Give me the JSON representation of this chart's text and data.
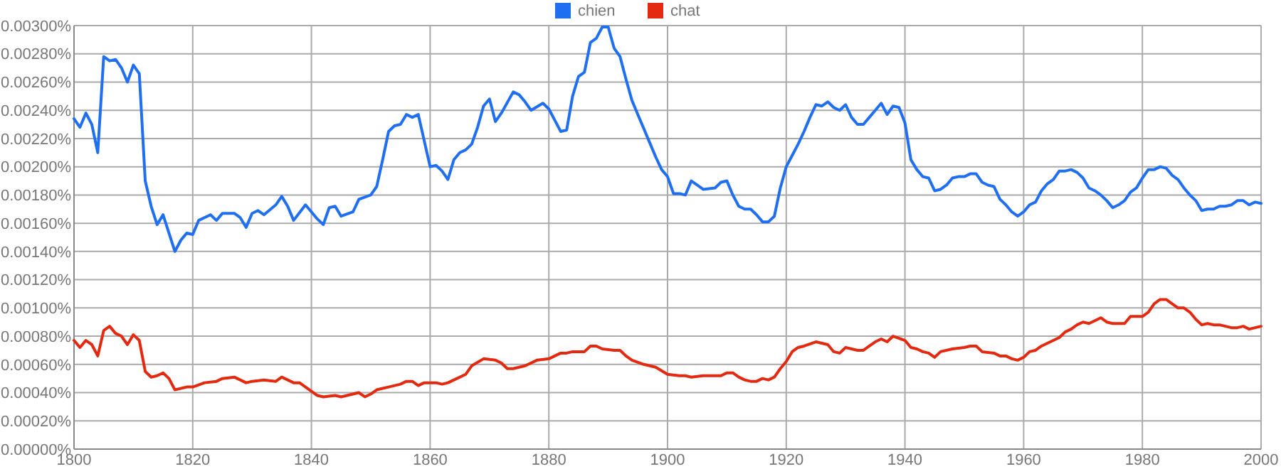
{
  "chart_data": {
    "type": "line",
    "legend": "top",
    "grid": true,
    "marker": "none",
    "line_style": "solid",
    "xlim": [
      1800,
      2000
    ],
    "xticks": [
      1800,
      1820,
      1840,
      1860,
      1880,
      1900,
      1920,
      1940,
      1960,
      1980,
      2000
    ],
    "ylim": [
      0,
      0.003
    ],
    "yticks": [
      {
        "value": 0,
        "label": "0.00000%"
      },
      {
        "value": 0.0002,
        "label": "0.00020%"
      },
      {
        "value": 0.0004,
        "label": "0.00040%"
      },
      {
        "value": 0.0006,
        "label": "0.00060%"
      },
      {
        "value": 0.0008,
        "label": "0.00080%"
      },
      {
        "value": 0.001,
        "label": "0.00100%"
      },
      {
        "value": 0.0012,
        "label": "0.00120%"
      },
      {
        "value": 0.0014,
        "label": "0.00140%"
      },
      {
        "value": 0.0016,
        "label": "0.00160%"
      },
      {
        "value": 0.0018,
        "label": "0.00180%"
      },
      {
        "value": 0.002,
        "label": "0.00200%"
      },
      {
        "value": 0.0022,
        "label": "0.00220%"
      },
      {
        "value": 0.0024,
        "label": "0.00240%"
      },
      {
        "value": 0.0026,
        "label": "0.00260%"
      },
      {
        "value": 0.0028,
        "label": "0.00280%"
      },
      {
        "value": 0.003,
        "label": "0.00300%"
      }
    ],
    "series": [
      {
        "name": "chien",
        "color": "#1f6ff0",
        "x": [
          1800,
          1801,
          1802,
          1803,
          1804,
          1805,
          1806,
          1807,
          1808,
          1809,
          1810,
          1811,
          1812,
          1813,
          1814,
          1815,
          1817,
          1818,
          1819,
          1820,
          1821,
          1823,
          1824,
          1825,
          1827,
          1828,
          1829,
          1830,
          1831,
          1832,
          1834,
          1835,
          1836,
          1837,
          1839,
          1841,
          1842,
          1843,
          1844,
          1845,
          1847,
          1848,
          1850,
          1851,
          1852,
          1853,
          1854,
          1855,
          1856,
          1857,
          1858,
          1860,
          1861,
          1862,
          1863,
          1864,
          1865,
          1866,
          1867,
          1868,
          1869,
          1870,
          1871,
          1872,
          1874,
          1875,
          1876,
          1877,
          1879,
          1880,
          1881,
          1882,
          1883,
          1884,
          1885,
          1886,
          1887,
          1888,
          1889,
          1890,
          1891,
          1892,
          1893,
          1894,
          1895,
          1896,
          1897,
          1898,
          1899,
          1900,
          1901,
          1902,
          1903,
          1904,
          1905,
          1906,
          1908,
          1909,
          1910,
          1911,
          1912,
          1913,
          1914,
          1915,
          1916,
          1917,
          1918,
          1919,
          1920,
          1921,
          1922,
          1923,
          1924,
          1925,
          1926,
          1927,
          1928,
          1929,
          1930,
          1931,
          1932,
          1933,
          1934,
          1935,
          1936,
          1937,
          1938,
          1939,
          1940,
          1941,
          1942,
          1943,
          1944,
          1945,
          1946,
          1947,
          1948,
          1949,
          1950,
          1951,
          1952,
          1953,
          1954,
          1955,
          1956,
          1957,
          1958,
          1959,
          1960,
          1961,
          1962,
          1963,
          1964,
          1965,
          1966,
          1967,
          1968,
          1969,
          1970,
          1971,
          1972,
          1973,
          1974,
          1975,
          1976,
          1977,
          1978,
          1979,
          1980,
          1981,
          1982,
          1983,
          1984,
          1985,
          1986,
          1987,
          1988,
          1989,
          1990,
          1991,
          1992,
          1993,
          1994,
          1995,
          1996,
          1997,
          1998,
          1999,
          2000
        ],
        "values": [
          0.00234,
          0.00228,
          0.00238,
          0.0023,
          0.0021,
          0.00278,
          0.00275,
          0.00276,
          0.0027,
          0.0026,
          0.00272,
          0.00266,
          0.0019,
          0.00172,
          0.00159,
          0.00166,
          0.0014,
          0.00148,
          0.00153,
          0.00152,
          0.00162,
          0.00166,
          0.00162,
          0.00167,
          0.00167,
          0.00164,
          0.00157,
          0.00167,
          0.00169,
          0.00166,
          0.00173,
          0.00179,
          0.00172,
          0.00162,
          0.00173,
          0.00163,
          0.00159,
          0.00171,
          0.00172,
          0.00165,
          0.00168,
          0.00177,
          0.0018,
          0.00186,
          0.00205,
          0.00225,
          0.00229,
          0.0023,
          0.00237,
          0.00235,
          0.00237,
          0.002,
          0.00201,
          0.00197,
          0.00191,
          0.00205,
          0.0021,
          0.00212,
          0.00216,
          0.00228,
          0.00243,
          0.00248,
          0.00232,
          0.00238,
          0.00253,
          0.00251,
          0.00246,
          0.0024,
          0.00245,
          0.00241,
          0.00233,
          0.00225,
          0.00226,
          0.0025,
          0.00264,
          0.00267,
          0.00288,
          0.00291,
          0.00299,
          0.00299,
          0.00284,
          0.00278,
          0.00262,
          0.00247,
          0.00237,
          0.00227,
          0.00217,
          0.00207,
          0.00198,
          0.00193,
          0.00181,
          0.00181,
          0.0018,
          0.0019,
          0.00187,
          0.00184,
          0.00185,
          0.00189,
          0.0019,
          0.0018,
          0.00172,
          0.0017,
          0.0017,
          0.00166,
          0.00161,
          0.00161,
          0.00165,
          0.00185,
          0.002,
          0.00208,
          0.00216,
          0.00225,
          0.00235,
          0.00244,
          0.00243,
          0.00246,
          0.00242,
          0.0024,
          0.00244,
          0.00235,
          0.0023,
          0.0023,
          0.00235,
          0.0024,
          0.00245,
          0.00237,
          0.00243,
          0.00242,
          0.00231,
          0.00205,
          0.00198,
          0.00193,
          0.00192,
          0.00183,
          0.00184,
          0.00187,
          0.00192,
          0.00193,
          0.00193,
          0.00195,
          0.00195,
          0.00189,
          0.00187,
          0.00186,
          0.00177,
          0.00173,
          0.00168,
          0.00165,
          0.00168,
          0.00173,
          0.00175,
          0.00183,
          0.00188,
          0.00191,
          0.00197,
          0.00197,
          0.00198,
          0.00196,
          0.00192,
          0.00185,
          0.00183,
          0.0018,
          0.00176,
          0.00171,
          0.00173,
          0.00176,
          0.00182,
          0.00185,
          0.00192,
          0.00198,
          0.00198,
          0.002,
          0.00199,
          0.00194,
          0.00191,
          0.00185,
          0.0018,
          0.00176,
          0.00169,
          0.0017,
          0.0017,
          0.00172,
          0.00172,
          0.00173,
          0.00176,
          0.00176,
          0.00173,
          0.00175,
          0.00174
        ]
      },
      {
        "name": "chat",
        "color": "#e3290f",
        "x": [
          1800,
          1801,
          1802,
          1803,
          1804,
          1805,
          1806,
          1807,
          1808,
          1809,
          1810,
          1811,
          1812,
          1813,
          1814,
          1815,
          1816,
          1817,
          1818,
          1819,
          1820,
          1822,
          1824,
          1825,
          1827,
          1829,
          1830,
          1832,
          1834,
          1835,
          1837,
          1838,
          1840,
          1841,
          1842,
          1844,
          1845,
          1848,
          1849,
          1850,
          1851,
          1853,
          1855,
          1856,
          1857,
          1858,
          1859,
          1861,
          1862,
          1863,
          1864,
          1866,
          1867,
          1869,
          1871,
          1872,
          1873,
          1874,
          1876,
          1878,
          1880,
          1881,
          1882,
          1883,
          1884,
          1886,
          1887,
          1888,
          1889,
          1891,
          1892,
          1893,
          1894,
          1896,
          1898,
          1900,
          1902,
          1903,
          1904,
          1906,
          1909,
          1910,
          1911,
          1912,
          1913,
          1914,
          1915,
          1916,
          1917,
          1918,
          1919,
          1920,
          1921,
          1922,
          1923,
          1925,
          1927,
          1928,
          1929,
          1930,
          1932,
          1933,
          1934,
          1935,
          1936,
          1937,
          1938,
          1940,
          1941,
          1942,
          1943,
          1944,
          1945,
          1946,
          1948,
          1950,
          1951,
          1952,
          1953,
          1955,
          1956,
          1957,
          1958,
          1959,
          1960,
          1961,
          1962,
          1963,
          1964,
          1965,
          1966,
          1967,
          1968,
          1969,
          1970,
          1971,
          1972,
          1973,
          1974,
          1975,
          1977,
          1978,
          1979,
          1980,
          1981,
          1982,
          1983,
          1984,
          1985,
          1986,
          1987,
          1988,
          1989,
          1990,
          1991,
          1992,
          1993,
          1995,
          1996,
          1997,
          1998,
          1999,
          2000
        ],
        "values": [
          0.00077,
          0.00072,
          0.00077,
          0.00074,
          0.00066,
          0.00084,
          0.00087,
          0.00082,
          0.0008,
          0.00074,
          0.00081,
          0.00077,
          0.00055,
          0.00051,
          0.00052,
          0.00054,
          0.0005,
          0.00042,
          0.00043,
          0.00044,
          0.00044,
          0.00047,
          0.00048,
          0.0005,
          0.00051,
          0.00047,
          0.00048,
          0.00049,
          0.00048,
          0.00051,
          0.00047,
          0.00047,
          0.00041,
          0.00038,
          0.00037,
          0.00038,
          0.00037,
          0.0004,
          0.00037,
          0.00039,
          0.00042,
          0.00044,
          0.00046,
          0.00048,
          0.00048,
          0.00045,
          0.00047,
          0.00047,
          0.00046,
          0.00047,
          0.00049,
          0.00053,
          0.00059,
          0.00064,
          0.00063,
          0.00061,
          0.00057,
          0.00057,
          0.00059,
          0.00063,
          0.00064,
          0.00066,
          0.00068,
          0.00068,
          0.00069,
          0.00069,
          0.00073,
          0.00073,
          0.00071,
          0.0007,
          0.0007,
          0.00066,
          0.00063,
          0.0006,
          0.00058,
          0.00053,
          0.00052,
          0.00052,
          0.00051,
          0.00052,
          0.00052,
          0.00054,
          0.00054,
          0.00051,
          0.00049,
          0.00048,
          0.00048,
          0.0005,
          0.00049,
          0.00051,
          0.00057,
          0.00062,
          0.00069,
          0.00072,
          0.00073,
          0.00076,
          0.00074,
          0.00069,
          0.00068,
          0.00072,
          0.0007,
          0.0007,
          0.00073,
          0.00076,
          0.00078,
          0.00076,
          0.0008,
          0.00077,
          0.00072,
          0.00071,
          0.00069,
          0.00068,
          0.00065,
          0.00069,
          0.00071,
          0.00072,
          0.00073,
          0.00073,
          0.00069,
          0.00068,
          0.00066,
          0.00066,
          0.00064,
          0.00063,
          0.00065,
          0.00069,
          0.0007,
          0.00073,
          0.00075,
          0.00077,
          0.00079,
          0.00083,
          0.00085,
          0.00088,
          0.0009,
          0.00089,
          0.00091,
          0.00093,
          0.0009,
          0.00089,
          0.00089,
          0.00094,
          0.00094,
          0.00094,
          0.00097,
          0.00103,
          0.00106,
          0.00106,
          0.00103,
          0.001,
          0.001,
          0.00097,
          0.00092,
          0.00088,
          0.00089,
          0.00088,
          0.00088,
          0.00086,
          0.00086,
          0.00087,
          0.00085,
          0.00086,
          0.00087
        ]
      }
    ]
  }
}
